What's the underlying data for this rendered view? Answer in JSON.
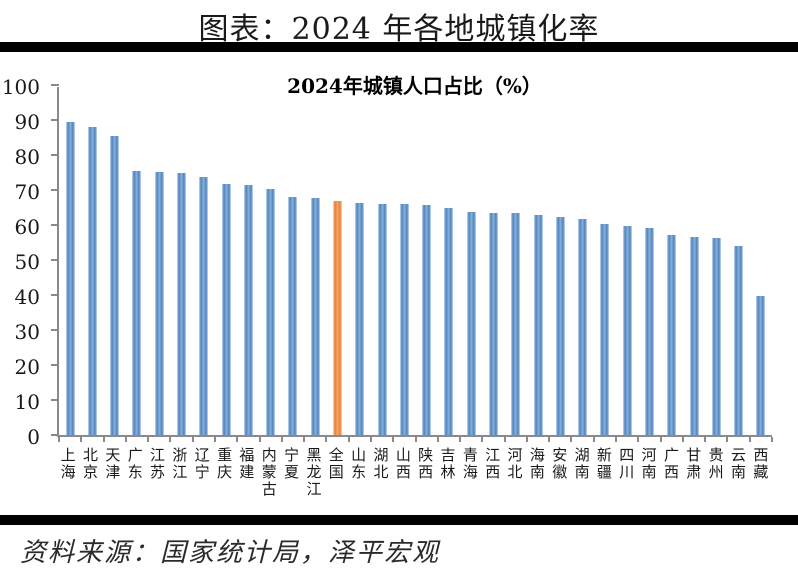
{
  "page": {
    "title": "图表：2024 年各地城镇化率",
    "source": "资料来源：国家统计局，泽平宏观"
  },
  "chart_data": {
    "type": "bar",
    "title": "2024年城镇人口占比（%）",
    "categories": [
      "上海",
      "北京",
      "天津",
      "广东",
      "江苏",
      "浙江",
      "辽宁",
      "重庆",
      "福建",
      "内蒙古",
      "宁夏",
      "黑龙江",
      "全国",
      "山东",
      "湖北",
      "山西",
      "陕西",
      "吉林",
      "青海",
      "江西",
      "河北",
      "海南",
      "安徽",
      "湖南",
      "新疆",
      "四川",
      "河南",
      "广西",
      "甘肃",
      "贵州",
      "云南",
      "西藏"
    ],
    "values": [
      89.4,
      87.9,
      85.5,
      75.3,
      75.1,
      74.8,
      73.7,
      71.7,
      71.3,
      70.2,
      67.9,
      67.6,
      67.0,
      66.2,
      66.0,
      65.9,
      65.6,
      65.0,
      63.7,
      63.5,
      63.3,
      62.8,
      62.2,
      61.7,
      60.2,
      59.6,
      59.1,
      57.1,
      56.6,
      56.4,
      53.9,
      39.6
    ],
    "highlight_index": 12,
    "highlight_category": "全国",
    "xlabel": "",
    "ylabel": "",
    "ylim": [
      0,
      100
    ],
    "yticks": [
      0,
      10,
      20,
      30,
      40,
      50,
      60,
      70,
      80,
      90,
      100
    ],
    "grid": false,
    "legend": null,
    "colors": {
      "bar_dark": "#4e81bd",
      "bar_mid": "#8ab1da",
      "bar_light": "#c9dcf0",
      "highlight_dark": "#ed7d31",
      "highlight_mid": "#f4a76c",
      "highlight_light": "#fad9bc",
      "axis": "#8a8a8a",
      "rule": "#000000"
    }
  }
}
